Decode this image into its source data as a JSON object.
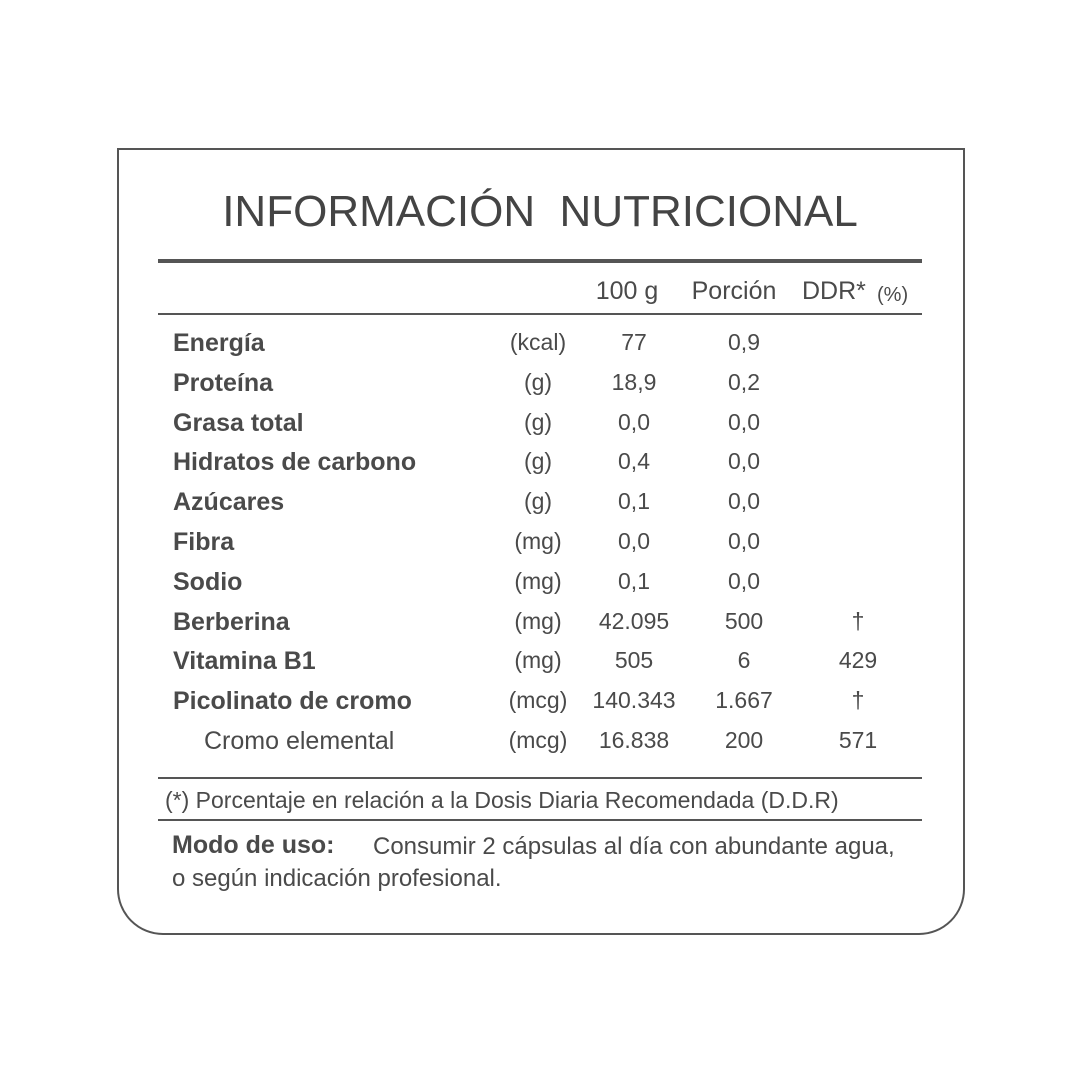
{
  "title": "INFORMACIÓN  NUTRICIONAL",
  "header": {
    "per100": "100 g",
    "portion": "Porción",
    "ddr": "DDR*",
    "ddr_unit": "(%)"
  },
  "rows": [
    {
      "name": "Energía",
      "unit": "(kcal)",
      "per100": "77",
      "portion": "0,9"
    },
    {
      "name": "Proteína",
      "unit": "(g)",
      "per100": "18,9",
      "portion": "0,2"
    },
    {
      "name": "Grasa total",
      "unit": "(g)",
      "per100": "0,0",
      "portion": "0,0"
    },
    {
      "name": "Hidratos de carbono",
      "unit": "(g)",
      "per100": "0,4",
      "portion": "0,0"
    },
    {
      "name": "Azúcares",
      "unit": "(g)",
      "per100": "0,1",
      "portion": "0,0"
    },
    {
      "name": "Fibra",
      "unit": "(mg)",
      "per100": "0,0",
      "portion": "0,0"
    },
    {
      "name": "Sodio",
      "unit": "(mg)",
      "per100": "0,1",
      "portion": "0,0"
    },
    {
      "name": "Berberina",
      "unit": "(mg)",
      "per100": "42.095",
      "portion": "500",
      "ddr": "†"
    },
    {
      "name": "Vitamina B1",
      "unit": "(mg)",
      "per100": "505",
      "portion": "6",
      "ddr": "429"
    },
    {
      "name": "Picolinato de cromo",
      "unit": "(mcg)",
      "per100": "140.343",
      "portion": "1.667",
      "ddr": "†"
    },
    {
      "name": "Cromo elemental",
      "unit": "(mcg)",
      "per100": "16.838",
      "portion": "200",
      "ddr": "571",
      "sub": true
    }
  ],
  "footnote": "(*) Porcentaje en relación a la Dosis Diaria Recomendada (D.D.R)",
  "usage": {
    "label": "Modo de uso:",
    "lines": [
      "Consumir 2 cápsulas al día con abundante agua,",
      "o según indicación profesional."
    ]
  }
}
